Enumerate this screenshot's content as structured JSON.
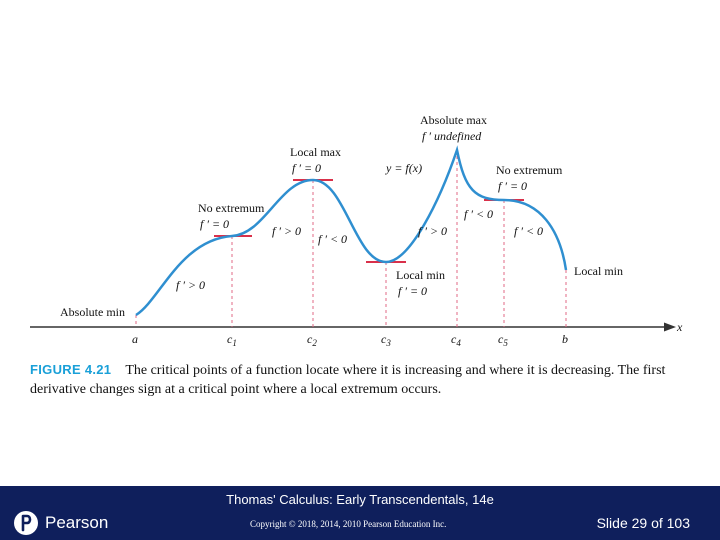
{
  "diagram": {
    "axis_label": "x",
    "function_label": "y = f(x)",
    "points": [
      "a",
      "c1",
      "c2",
      "c3",
      "c4",
      "c5",
      "b"
    ],
    "annotations": {
      "absolute_min": "Absolute min",
      "fprime_pos_1": "f ′ > 0",
      "no_extremum_1": "No extremum",
      "no_extremum_1_cond": "f ′ = 0",
      "fprime_pos_2": "f ′ > 0",
      "local_max": "Local max",
      "local_max_cond": "f ′ = 0",
      "fprime_neg_1": "f ′ < 0",
      "local_min": "Local min",
      "local_min_cond": "f ′ = 0",
      "fprime_pos_3": "f ′ > 0",
      "absolute_max": "Absolute max",
      "absolute_max_cond": "f ′  undefined",
      "fprime_neg_2": "f ′ < 0",
      "no_extremum_2": "No extremum",
      "no_extremum_2_cond": "f ′ = 0",
      "fprime_neg_3": "f ′ < 0",
      "local_min_end": "Local min"
    },
    "colors": {
      "curve": "#2f8fd0",
      "tangent": "#d9304a",
      "guide": "#e06a85",
      "axis": "#333333",
      "figure_label": "#1aa0d8"
    }
  },
  "caption": {
    "figure_label": "FIGURE 4.21",
    "text": "The critical points of a function locate where it is increasing and where it is decreasing. The first derivative changes sign at a critical point where a local extremum occurs."
  },
  "footer": {
    "title": "Thomas' Calculus: Early Transcendentals, 14e",
    "copyright": "Copyright © 2018, 2014, 2010 Pearson Education Inc.",
    "logo_text": "Pearson",
    "slide_indicator": "Slide 29 of 103"
  }
}
